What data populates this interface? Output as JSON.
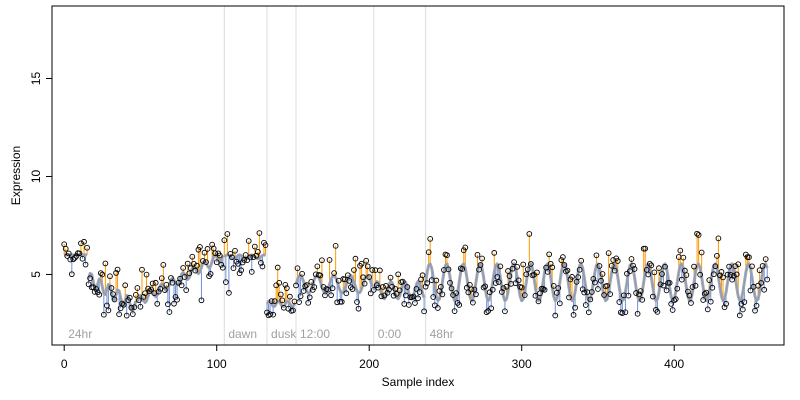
{
  "chart_data": {
    "type": "scatter",
    "title": "",
    "xlabel": "Sample index",
    "ylabel": "Expression",
    "xlim": [
      -8,
      472
    ],
    "ylim": [
      1.4,
      18.7
    ],
    "x_ticks": [
      0,
      100,
      200,
      300,
      400
    ],
    "y_ticks": [
      5,
      10,
      15
    ],
    "grid": false,
    "legend": "none",
    "colors": {
      "points": "#000000",
      "fit_line": "#a9a9a9",
      "fit_accent": "#6f8fd6",
      "residual_up": "#ff9900",
      "residual_down": "#6f8fd6",
      "marker_lines": "#dcdcdc",
      "marker_text": "#a0a0a0"
    },
    "segment_markers": [
      {
        "x": 0,
        "label": "24hr"
      },
      {
        "x": 105,
        "label": "dawn"
      },
      {
        "x": 133,
        "label": "dusk"
      },
      {
        "x": 152,
        "label": "12:00"
      },
      {
        "x": 203,
        "label": "0:00"
      },
      {
        "x": 237,
        "label": "48hr"
      }
    ],
    "fit_segments": [
      {
        "start": 0,
        "end": 16,
        "shape": "flat",
        "base": 6.0,
        "amp": 0.0,
        "period": 10
      },
      {
        "start": 16,
        "end": 48,
        "shape": "decline",
        "base": 4.8,
        "end_value": 3.3,
        "amp": 0.35,
        "period": 6
      },
      {
        "start": 48,
        "end": 105,
        "shape": "rise",
        "base": 3.6,
        "end_value": 6.0,
        "amp": 0.25,
        "period": 7
      },
      {
        "start": 105,
        "end": 133,
        "shape": "flat",
        "base": 5.9,
        "amp": 0.1,
        "period": 8
      },
      {
        "start": 133,
        "end": 152,
        "shape": "flat",
        "base": 3.5,
        "amp": 0.15,
        "period": 6
      },
      {
        "start": 152,
        "end": 203,
        "shape": "wave",
        "base": 4.5,
        "amp": 0.45,
        "period": 11
      },
      {
        "start": 203,
        "end": 237,
        "shape": "wave",
        "base": 4.2,
        "amp": 0.45,
        "period": 9
      },
      {
        "start": 237,
        "end": 462,
        "shape": "wave",
        "base": 4.6,
        "amp": 0.95,
        "period": 11
      }
    ],
    "n_points": 462,
    "noise_sd": 0.7,
    "random_seed": 7
  }
}
